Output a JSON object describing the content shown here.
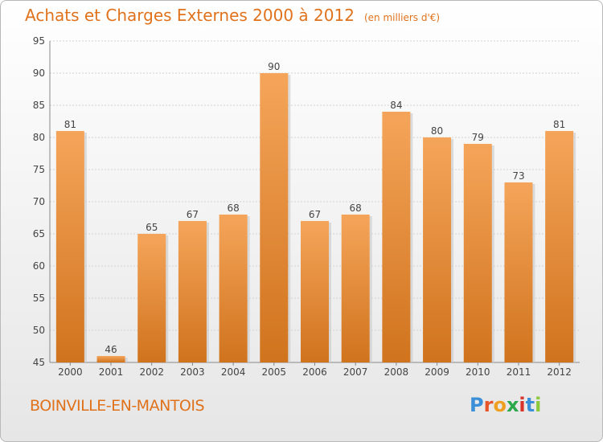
{
  "chart_data": {
    "type": "bar",
    "title": "Achats et Charges Externes 2000 à 2012",
    "subtitle": "(en milliers d'€)",
    "categories": [
      "2000",
      "2001",
      "2002",
      "2003",
      "2004",
      "2005",
      "2006",
      "2007",
      "2008",
      "2009",
      "2010",
      "2011",
      "2012"
    ],
    "values": [
      81,
      46,
      65,
      67,
      68,
      90,
      67,
      68,
      84,
      80,
      79,
      73,
      81
    ],
    "ylim": [
      45,
      95
    ],
    "yticks": [
      45,
      50,
      55,
      60,
      65,
      70,
      75,
      80,
      85,
      90,
      95
    ],
    "grid": true,
    "bar_color_top": "#f5a55a",
    "bar_color_bottom": "#d0731d"
  },
  "footer": {
    "location": "BOINVILLE-EN-MANTOIS",
    "logo_letters": [
      "P",
      "r",
      "o",
      "x",
      "i",
      "t",
      "i"
    ],
    "logo_colors": [
      "#3a8fd8",
      "#e8542a",
      "#f0a020",
      "#2aa84a",
      "#d8342a",
      "#3a8fd8",
      "#8bc83a"
    ]
  }
}
